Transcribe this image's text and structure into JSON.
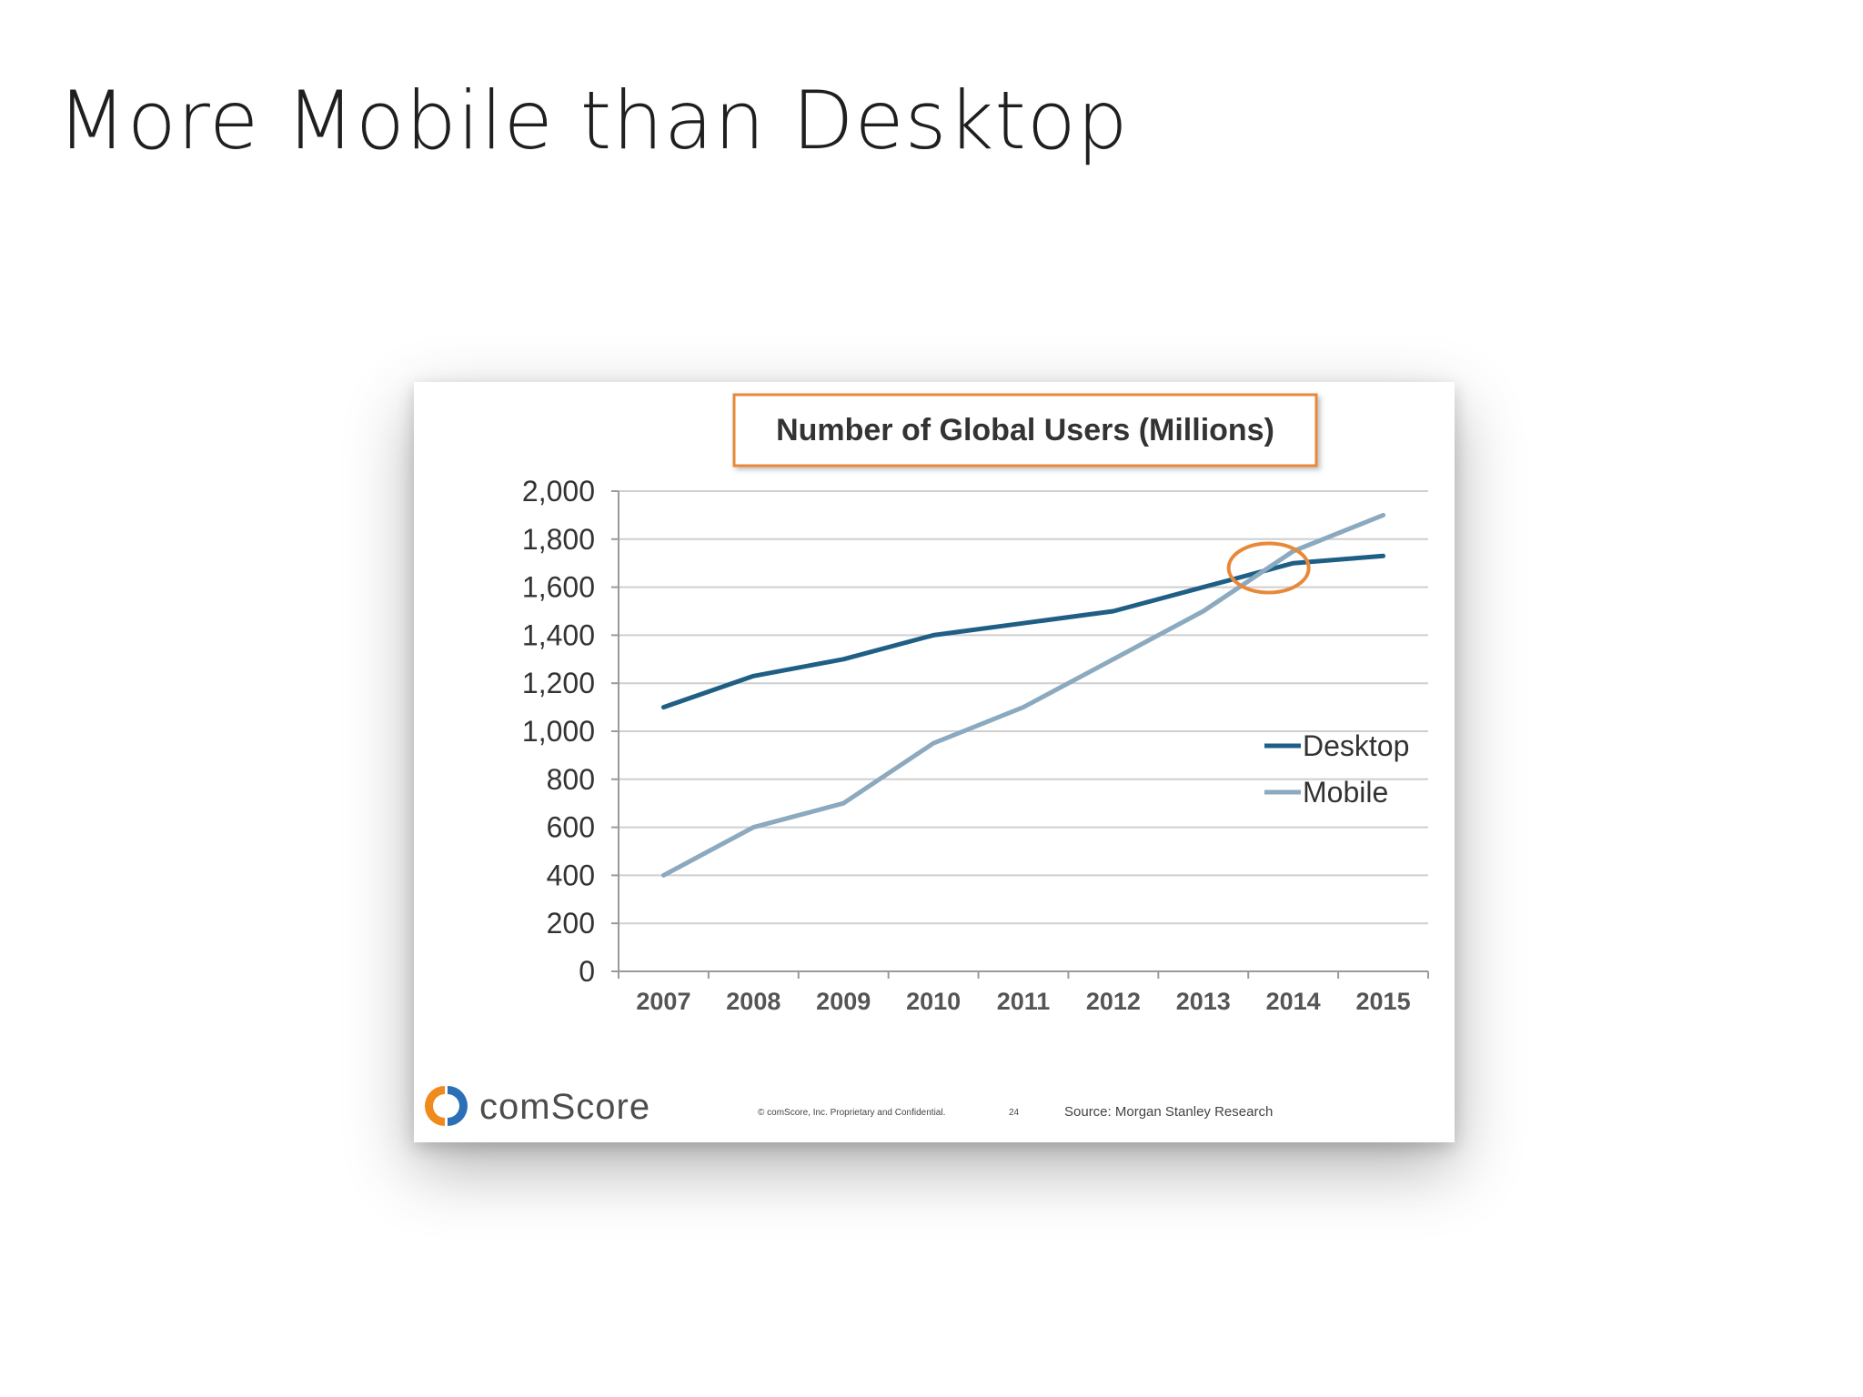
{
  "slide": {
    "title": "More Mobile than Desktop"
  },
  "chart_data": {
    "type": "line",
    "title": "Number of Global Users (Millions)",
    "x": [
      "2007",
      "2008",
      "2009",
      "2010",
      "2011",
      "2012",
      "2013",
      "2014",
      "2015"
    ],
    "series": [
      {
        "name": "Desktop",
        "color": "#1f5f85",
        "values": [
          1100,
          1230,
          1300,
          1400,
          1450,
          1500,
          1600,
          1700,
          1730
        ]
      },
      {
        "name": "Mobile",
        "color": "#8ba9bf",
        "values": [
          400,
          600,
          700,
          950,
          1100,
          1300,
          1500,
          1750,
          1900
        ]
      }
    ],
    "ylim": [
      0,
      2000
    ],
    "yticks": [
      0,
      200,
      400,
      600,
      800,
      1000,
      1200,
      1400,
      1600,
      1800,
      2000
    ],
    "ytick_labels": [
      "0",
      "200",
      "400",
      "600",
      "800",
      "1,000",
      "1,200",
      "1,400",
      "1,600",
      "1,800",
      "2,000"
    ],
    "xlabel": "",
    "ylabel": "",
    "grid": true,
    "legend_position": "right",
    "annotation": {
      "type": "circle",
      "color": "#e8893a",
      "x_year": 2014,
      "y": 1680
    }
  },
  "footer": {
    "brand": "comScore",
    "copyright": "© comScore, Inc.  Proprietary and Confidential.",
    "page_number": "24",
    "source": "Source: Morgan Stanley Research",
    "logo_colors": {
      "orange": "#f08a1c",
      "blue": "#2b6fb6"
    }
  }
}
